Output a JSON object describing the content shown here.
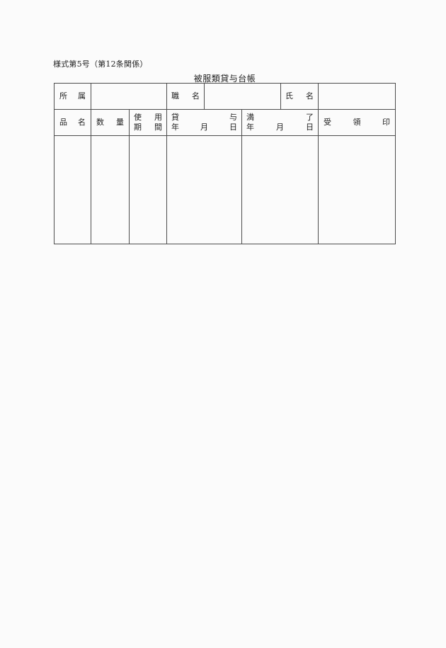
{
  "page": {
    "form_number": "様式第5号（第12条関係）",
    "title": "被服類貸与台帳"
  },
  "info_row": {
    "affiliation_label": "所属",
    "affiliation_value": "",
    "job_title_label": "職名",
    "job_title_value": "",
    "name_label": "氏名",
    "name_value": ""
  },
  "columns": {
    "item_name": "品名",
    "quantity": "数量",
    "usage_period_line1": "使用",
    "usage_period_line2": "期間",
    "lend_date_line1": "貸与",
    "lend_date_line2": "年月日",
    "expiry_date_line1": "満了",
    "expiry_date_line2": "年月日",
    "receipt_seal": "受領印"
  },
  "body_row": {
    "item_name": "",
    "quantity": "",
    "usage_period": "",
    "lend_date": "",
    "expiry_date": "",
    "receipt_seal": ""
  }
}
